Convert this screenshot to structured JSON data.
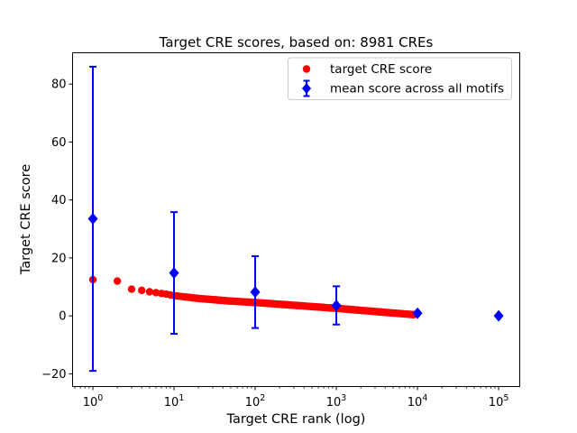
{
  "figure": {
    "background": "#ffffff",
    "text_color": "#000000"
  },
  "chart_data": {
    "type": "scatter",
    "title": "Target CRE scores, based on: 8981 CREs",
    "xlabel": "Target CRE rank (log)",
    "ylabel": "Target CRE score",
    "x_scale": "log10",
    "xlim_log10": [
      -0.25,
      5.26
    ],
    "ylim": [
      -24.4,
      90.8
    ],
    "x_tick_exponents": [
      0,
      1,
      2,
      3,
      4,
      5
    ],
    "x_tick_base": "10",
    "y_ticks": [
      -20,
      0,
      20,
      40,
      60,
      80
    ],
    "grid": false,
    "legend_position": "upper right",
    "series": [
      {
        "name": "target CRE score",
        "marker": "circle",
        "color": "#ff0000",
        "n_points_depicted": 8981,
        "anchor_points": {
          "rank": [
            1,
            2,
            3,
            4,
            5,
            6,
            8,
            10,
            15,
            20,
            30,
            50,
            100,
            200,
            400,
            700,
            1000,
            2000,
            4000,
            6000,
            8981
          ],
          "score": [
            12.5,
            12.0,
            9.2,
            8.8,
            8.3,
            8.0,
            7.5,
            7.0,
            6.4,
            6.0,
            5.6,
            5.1,
            4.6,
            4.0,
            3.4,
            2.9,
            2.6,
            1.9,
            1.2,
            0.8,
            0.4
          ]
        }
      },
      {
        "name": "mean score across all motifs",
        "marker": "diamond",
        "color": "#0000ff",
        "x": [
          1,
          10,
          100,
          1000,
          10000,
          100000
        ],
        "y": [
          33.5,
          14.8,
          8.2,
          3.6,
          0.9,
          0.0
        ],
        "yerr": [
          52.5,
          21.0,
          12.4,
          6.6,
          0,
          0
        ]
      }
    ],
    "legend": {
      "entries": [
        {
          "label": "target CRE score",
          "marker": "circle",
          "color": "#ff0000"
        },
        {
          "label": "mean score across all motifs",
          "marker": "diamond-errorbar",
          "color": "#0000ff"
        }
      ]
    }
  }
}
